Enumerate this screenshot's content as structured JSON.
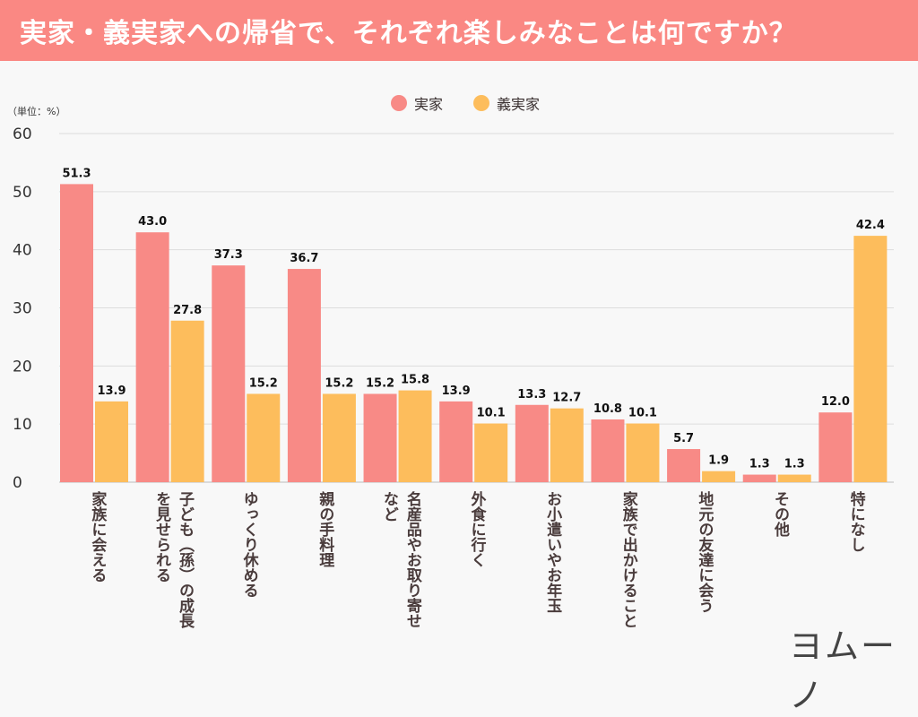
{
  "header": {
    "title": "実家・義実家への帰省で、それぞれ楽しみなことは何ですか？"
  },
  "logo": {
    "text": "ヨムーノ"
  },
  "chart_data": {
    "type": "bar",
    "title": "実家・義実家への帰省で、それぞれ楽しみなことは何ですか？",
    "unit_label": "（単位：%）",
    "ylim": [
      0,
      60
    ],
    "yticks": [
      "0",
      "10",
      "20",
      "30",
      "40",
      "50",
      "60"
    ],
    "grid": true,
    "legend_position": "top-center",
    "categories": [
      "家族に会える",
      "子ども（孫）の成長\nを見せられる",
      "ゆっくり休める",
      "親の手料理",
      "名産品やお取り寄せ\nなど",
      "外食に行く",
      "お小遣いやお年玉",
      "家族で出かけること",
      "地元の友達に会う",
      "その他",
      "特になし"
    ],
    "series": [
      {
        "name": "実家",
        "color": "#f88a86",
        "values": [
          51.3,
          43.0,
          37.3,
          36.7,
          15.2,
          13.9,
          13.3,
          10.8,
          5.7,
          1.3,
          12.0
        ]
      },
      {
        "name": "義実家",
        "color": "#fdbd5c",
        "values": [
          13.9,
          27.8,
          15.2,
          15.2,
          15.8,
          10.1,
          12.7,
          10.1,
          1.9,
          1.3,
          42.4
        ]
      }
    ]
  }
}
